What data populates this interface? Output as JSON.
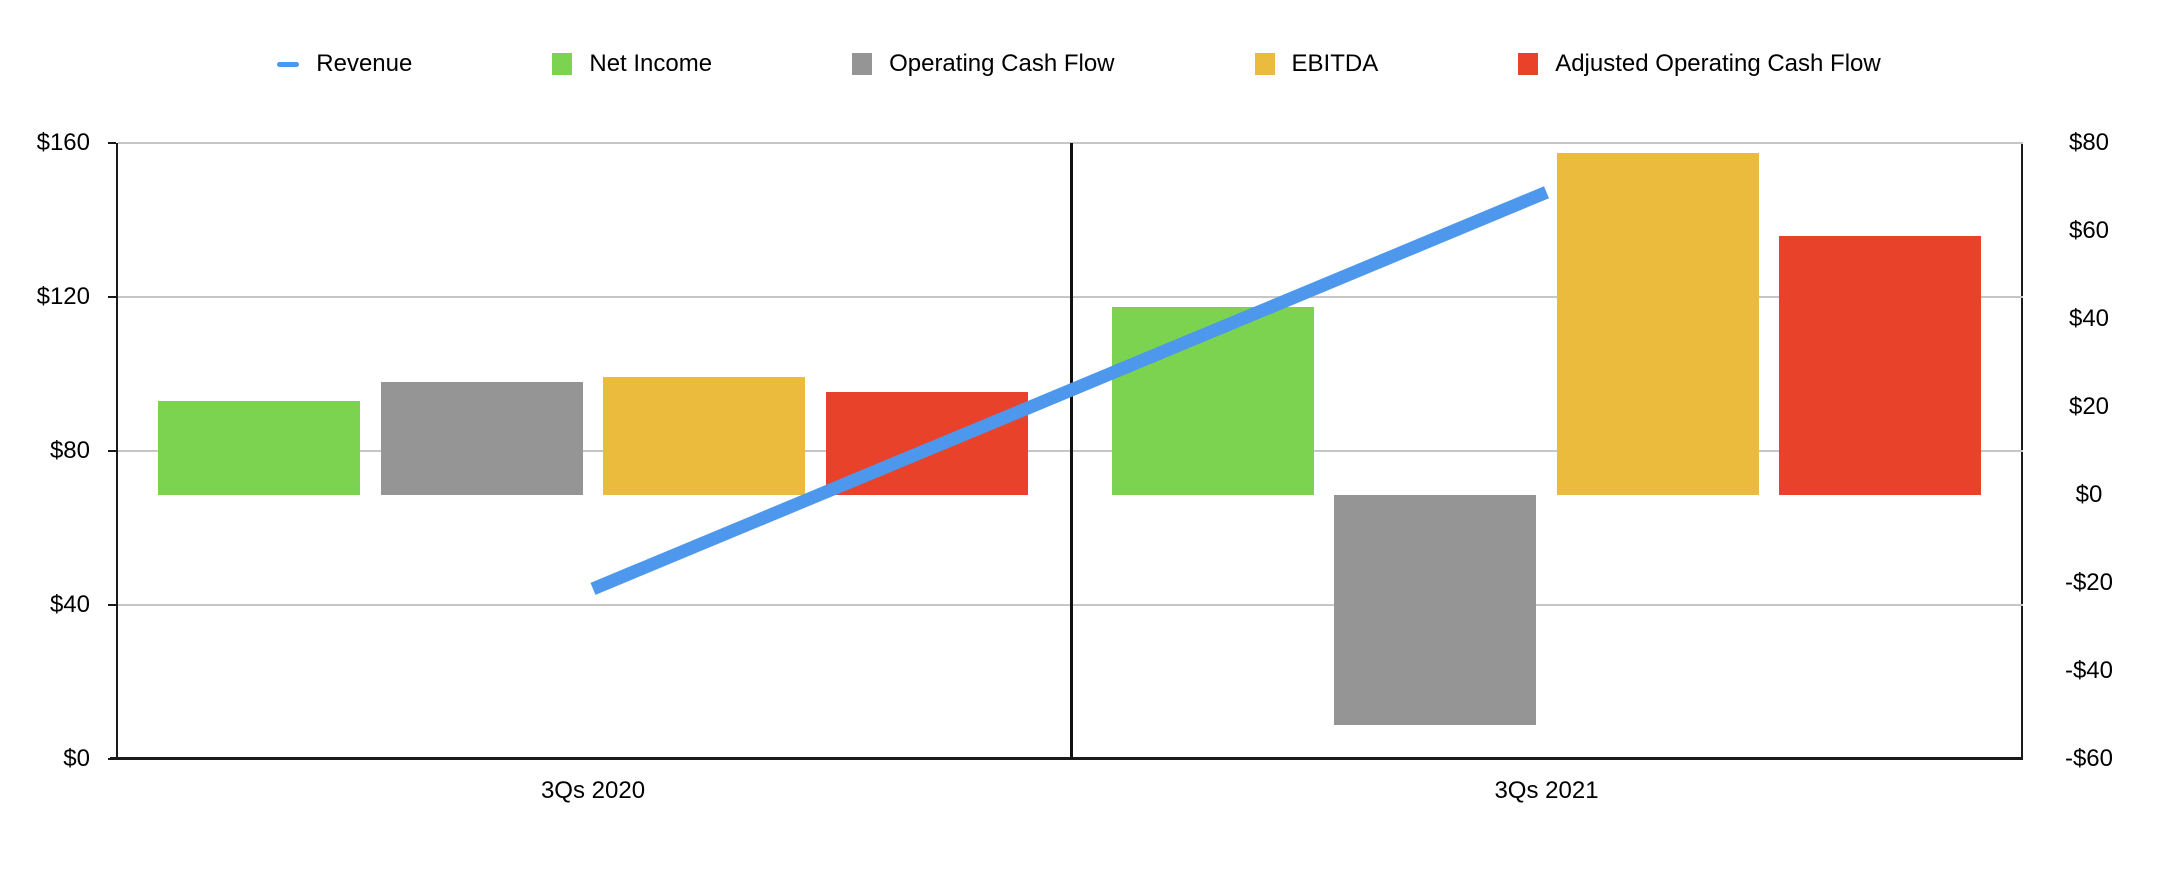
{
  "legend": {
    "items": [
      {
        "label": "Revenue",
        "marker": "line-dash",
        "color": "#4d97ec"
      },
      {
        "label": "Net Income",
        "marker": "square",
        "color": "#7cd34f"
      },
      {
        "label": "Operating Cash Flow",
        "marker": "square",
        "color": "#959595"
      },
      {
        "label": "EBITDA",
        "marker": "square",
        "color": "#ebbb3d"
      },
      {
        "label": "Adjusted Operating Cash Flow",
        "marker": "square",
        "color": "#e8432a"
      }
    ]
  },
  "chart_data": {
    "type": "combo-bar-line",
    "categories": [
      "3Qs 2020",
      "3Qs 2021"
    ],
    "bar_series": [
      {
        "name": "Net Income",
        "color": "#7cd34f",
        "axis": "right",
        "values": [
          21.3,
          42.7
        ]
      },
      {
        "name": "Operating Cash Flow",
        "color": "#959595",
        "axis": "right",
        "values": [
          25.6,
          -52.3
        ]
      },
      {
        "name": "EBITDA",
        "color": "#ebbb3d",
        "axis": "right",
        "values": [
          26.8,
          77.8
        ]
      },
      {
        "name": "Adjusted Operating Cash Flow",
        "color": "#e8432a",
        "axis": "right",
        "values": [
          23.3,
          58.8
        ]
      }
    ],
    "line_series": [
      {
        "name": "Revenue",
        "color": "#4d97ec",
        "axis": "left",
        "values": [
          44.2,
          147.2
        ]
      }
    ],
    "left_axis": {
      "min": 0,
      "max": 160,
      "tick_labels": [
        "$0",
        "$40",
        "$80",
        "$120",
        "$160"
      ]
    },
    "right_axis": {
      "min": -60,
      "max": 80,
      "tick_labels": [
        "-$60",
        "-$40",
        "-$20",
        "$0",
        "$20",
        "$40",
        "$60",
        "$80"
      ]
    },
    "grid": true,
    "legend_position": "top"
  }
}
